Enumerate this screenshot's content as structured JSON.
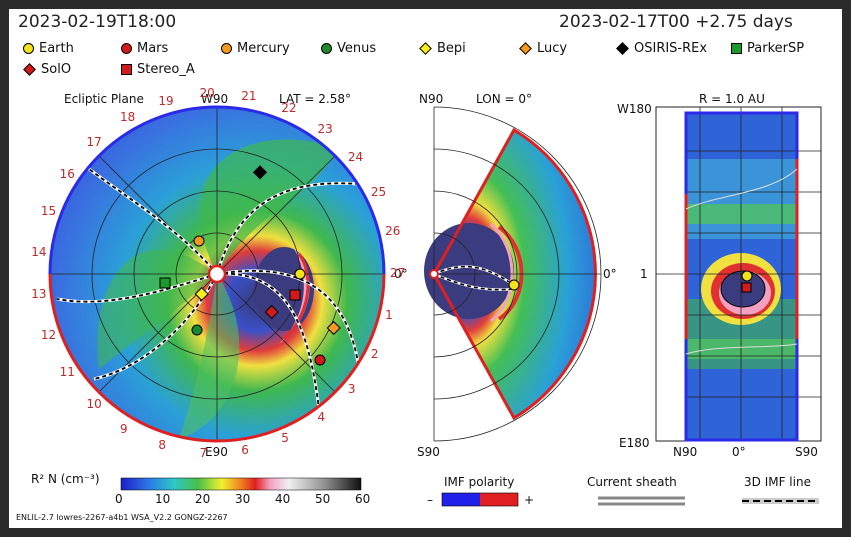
{
  "header": {
    "left_time": "2023-02-19T18:00",
    "right_time": "2023-02-17T00 +2.75 days"
  },
  "legend": [
    {
      "name": "Earth",
      "shape": "circle",
      "color": "#f2e21b"
    },
    {
      "name": "Mars",
      "shape": "circle",
      "color": "#d11a1a"
    },
    {
      "name": "Mercury",
      "shape": "circle",
      "color": "#f39a1e"
    },
    {
      "name": "Venus",
      "shape": "circle",
      "color": "#1b8a2a"
    },
    {
      "name": "Bepi",
      "shape": "diamond",
      "color": "#f4ef1c"
    },
    {
      "name": "Lucy",
      "shape": "diamond",
      "color": "#f49a1e"
    },
    {
      "name": "OSIRIS-REx",
      "shape": "diamond",
      "color": "#000000"
    },
    {
      "name": "ParkerSP",
      "shape": "square",
      "color": "#1a9a2a"
    },
    {
      "name": "SolO",
      "shape": "diamond",
      "color": "#d11a1a"
    },
    {
      "name": "Stereo_A",
      "shape": "square",
      "color": "#d11a1a"
    }
  ],
  "panel1": {
    "title": "Ecliptic Plane",
    "top_label": "W90",
    "lat_label": "LAT = 2.58°",
    "bottom_label": "E90",
    "zero_label": "0°",
    "clock": [
      "19",
      "20",
      "21",
      "22",
      "23",
      "24",
      "25",
      "26",
      "27",
      "1",
      "2",
      "3",
      "4",
      "5",
      "6",
      "7",
      "8",
      "9",
      "10",
      "11",
      "12",
      "13",
      "14",
      "15",
      "16",
      "17",
      "18"
    ]
  },
  "panel2": {
    "top_label": "N90",
    "lon_label": "LON = 0°",
    "bottom_label": "S90",
    "zero_label": "0°"
  },
  "panel3": {
    "title": "R = 1.0 AU",
    "left_top": "W180",
    "left_mid": "1",
    "left_bottom": "E180",
    "bottom_left": "N90",
    "bottom_mid": "0°",
    "bottom_right": "S90"
  },
  "colorbar": {
    "label": "R² N (cm⁻³)",
    "ticks": [
      "0",
      "10",
      "20",
      "30",
      "40",
      "50",
      "60"
    ]
  },
  "imf": {
    "label": "IMF polarity",
    "minus": "–",
    "plus": "+"
  },
  "sheath": {
    "label": "Current sheath"
  },
  "imfline": {
    "label": "3D IMF line"
  },
  "footer": "ENLIL-2.7 lowres-2267-a4b1 WSA_V2.2 GONGZ-2267"
}
